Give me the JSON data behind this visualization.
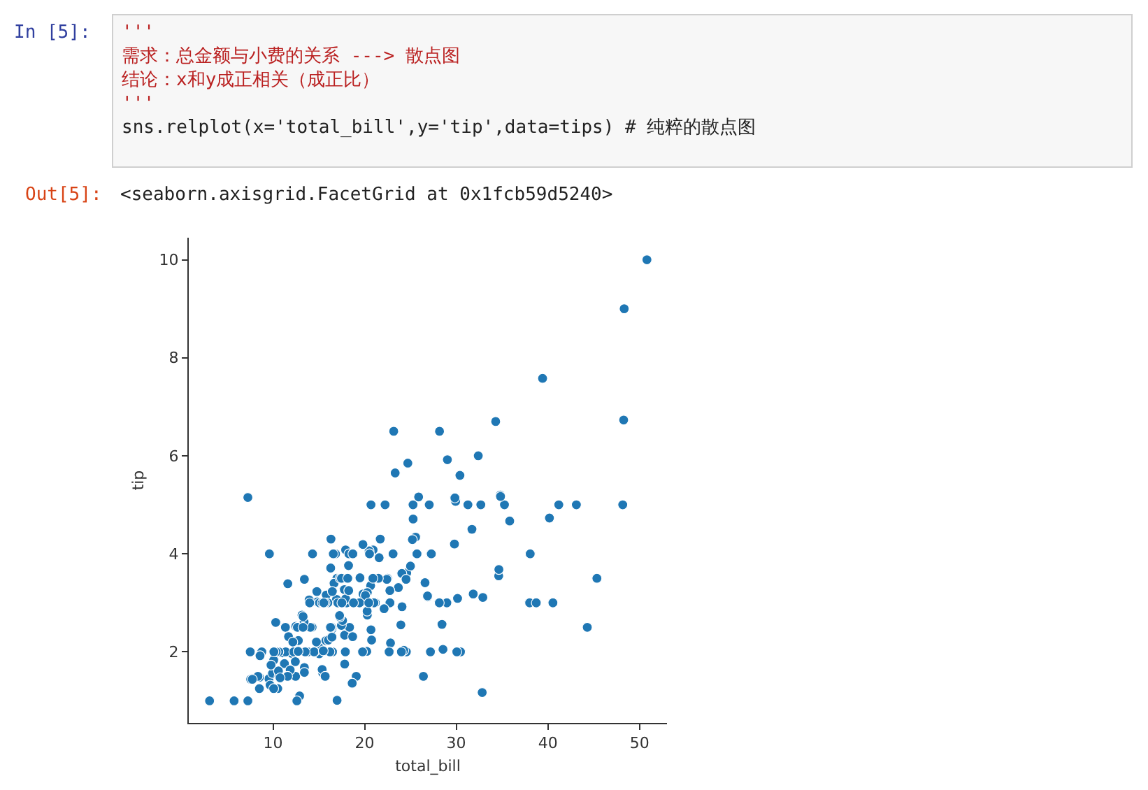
{
  "chart_data": {
    "type": "scatter",
    "xlabel": "total_bill",
    "ylabel": "tip",
    "annotations": [
      "In [5]:",
      "'''",
      "需求：总金额与小费的关系 ---> 散点图",
      "结论：x和y成正相关（成正比）",
      "'''",
      "sns.relplot(x='total_bill',y='tip',data=tips) # 纯粹的散点图",
      "Out[5]:",
      "<seaborn.axisgrid.FacetGrid at 0x1fcb59d5240>"
    ],
    "xlim": [
      0.8,
      53
    ],
    "ylim": [
      0.55,
      10.45
    ],
    "xticks": [
      10,
      20,
      30,
      40,
      50
    ],
    "yticks": [
      2,
      4,
      6,
      8,
      10
    ],
    "grid": false,
    "marker": "circle",
    "series": [
      {
        "color": "#1f77b4",
        "x": [
          16.99,
          23.68,
          24.59,
          25.29,
          8.77,
          26.88,
          15.04,
          14.78,
          35.26,
          15.42,
          14.83,
          21.58,
          16.29,
          16.97,
          20.65,
          17.92,
          20.29,
          15.77,
          39.42,
          19.82,
          17.81,
          21.7,
          9.55,
          18.35,
          15.06,
          20.69,
          17.78,
          24.06,
          16.93,
          18.69,
          31.27,
          16.04,
          17.46,
          13.94,
          9.68,
          30.4,
          22.23,
          32.4,
          28.55,
          18.04,
          10.29,
          34.81,
          9.94,
          25.56,
          19.49,
          38.01,
          26.41,
          11.24,
          48.27,
          20.29,
          13.81,
          11.02,
          17.59,
          20.08,
          16.45,
          3.07,
          20.23,
          15.01,
          12.02,
          17.07,
          26.86,
          25.28,
          14.73,
          10.51,
          17.92,
          27.2,
          22.76,
          17.29,
          19.44,
          16.66,
          10.07,
          32.68,
          34.83,
          18.28,
          24.71,
          21.16,
          28.97,
          22.49,
          5.75,
          16.32,
          22.75,
          40.17,
          27.28,
          21.01,
          12.46,
          11.35,
          15.38,
          44.3,
          22.42,
          20.92,
          15.36,
          20.49,
          25.21,
          18.24,
          14.31,
          14,
          7.25,
          38.07,
          23.95,
          25.71,
          17.31,
          29.93,
          10.65,
          12.43,
          24.08,
          11.69,
          13.42,
          14.26,
          12.48,
          29.8,
          8.52,
          14.52,
          11.38,
          22.82,
          19.08,
          20.27,
          12.26,
          18.26,
          8.51,
          13.16,
          17.47,
          34.3,
          41.19,
          27.05,
          16.43,
          8.35,
          18.64,
          11.87,
          9.78,
          7.51,
          14.07,
          17.26,
          24.55,
          19.77,
          29.85,
          48.17,
          25,
          13.39,
          16.49,
          21.5,
          12.66,
          16.21,
          17.51,
          24.52,
          20.76,
          31.71,
          10.59,
          10.63,
          50.81,
          15.81,
          7.25,
          31.85,
          16.82,
          32.9,
          17.89,
          14.48,
          9.6,
          34.63,
          34.65,
          23.33,
          45.35,
          23.17,
          40.55,
          20.69,
          20.9,
          30.46,
          18.15,
          23.1,
          15.69,
          19.81,
          28.44,
          15.48,
          16.58,
          7.56,
          10.34,
          43.11,
          13.51,
          18.71,
          12.74,
          16.4,
          20.53,
          16.47,
          26.59,
          38.73,
          24.27,
          12.76,
          30.06,
          25.89,
          48.33,
          13.27,
          28.17,
          12.9,
          28.15,
          11.59,
          7.74,
          30.14,
          12.16,
          13.42,
          8.58,
          15.98,
          13.42,
          16.27,
          10.09,
          20.45,
          13.28,
          22.12,
          24.01,
          15.69,
          11.61,
          10.77,
          15.53,
          10.07,
          12.6,
          32.83,
          35.83,
          29.03,
          27.18,
          22.67,
          17.82,
          18.78
        ],
        "values": [
          1.01,
          3.31,
          3.61,
          4.71,
          2,
          3.12,
          1.96,
          3.23,
          5,
          1.57,
          3.02,
          3.92,
          3.71,
          3.5,
          3.35,
          4.08,
          2.75,
          2.23,
          7.58,
          3.18,
          2.34,
          4.3,
          1.45,
          2.5,
          3,
          2.45,
          3.27,
          3.6,
          3.07,
          2.31,
          5,
          2.24,
          2.54,
          3.06,
          1.32,
          5.6,
          5,
          6,
          2.05,
          3,
          2.6,
          5.2,
          1.56,
          4.34,
          3.51,
          3,
          1.5,
          1.76,
          6.73,
          3.21,
          2,
          1.98,
          2.64,
          3.15,
          2.47,
          1,
          2.01,
          2.09,
          1.97,
          3,
          3.14,
          5,
          2.2,
          1.25,
          3.08,
          4,
          3,
          2.71,
          3,
          3.4,
          1.83,
          5,
          5.17,
          4,
          5.85,
          3,
          3,
          3.5,
          1,
          4.3,
          3.25,
          4.73,
          4,
          3,
          1.5,
          2.5,
          3,
          2.5,
          3.48,
          4.08,
          1.64,
          4.06,
          4.29,
          3.76,
          4,
          3,
          1,
          4,
          2.55,
          4,
          3.5,
          5.07,
          1.5,
          1.8,
          2.92,
          2.31,
          1.68,
          2.5,
          2.52,
          4.2,
          1.48,
          2,
          2,
          2.18,
          1.5,
          2.83,
          2,
          3.25,
          1.25,
          2.75,
          3.5,
          6.7,
          5,
          5,
          2.3,
          1.5,
          1.36,
          1.63,
          1.73,
          2,
          2.5,
          2.74,
          2,
          2,
          5.14,
          5,
          3.75,
          2.61,
          2,
          3.5,
          2.5,
          2,
          3,
          3.48,
          2.24,
          4.5,
          1.61,
          2,
          10,
          3.16,
          5.15,
          3.18,
          4,
          3.11,
          2,
          2,
          4,
          3.55,
          3.68,
          5.65,
          3.5,
          6.5,
          3,
          5,
          3.5,
          2,
          3.5,
          4,
          1.5,
          4.19,
          2.56,
          2.02,
          4,
          1.44,
          2,
          5,
          2,
          4,
          2.01,
          2.5,
          4,
          3.23,
          3.41,
          3,
          2.03,
          2.23,
          2,
          5.16,
          9,
          2.5,
          6.5,
          1.1,
          3,
          1.5,
          1.44,
          3.09,
          2.2,
          3.48,
          1.92,
          3,
          1.58,
          2.5,
          2,
          3,
          2.72,
          2.88,
          2,
          3,
          3.39,
          1.47,
          3,
          1.25,
          1,
          1.17,
          4.67,
          5.92,
          2,
          2,
          1.75,
          3
        ]
      }
    ]
  }
}
